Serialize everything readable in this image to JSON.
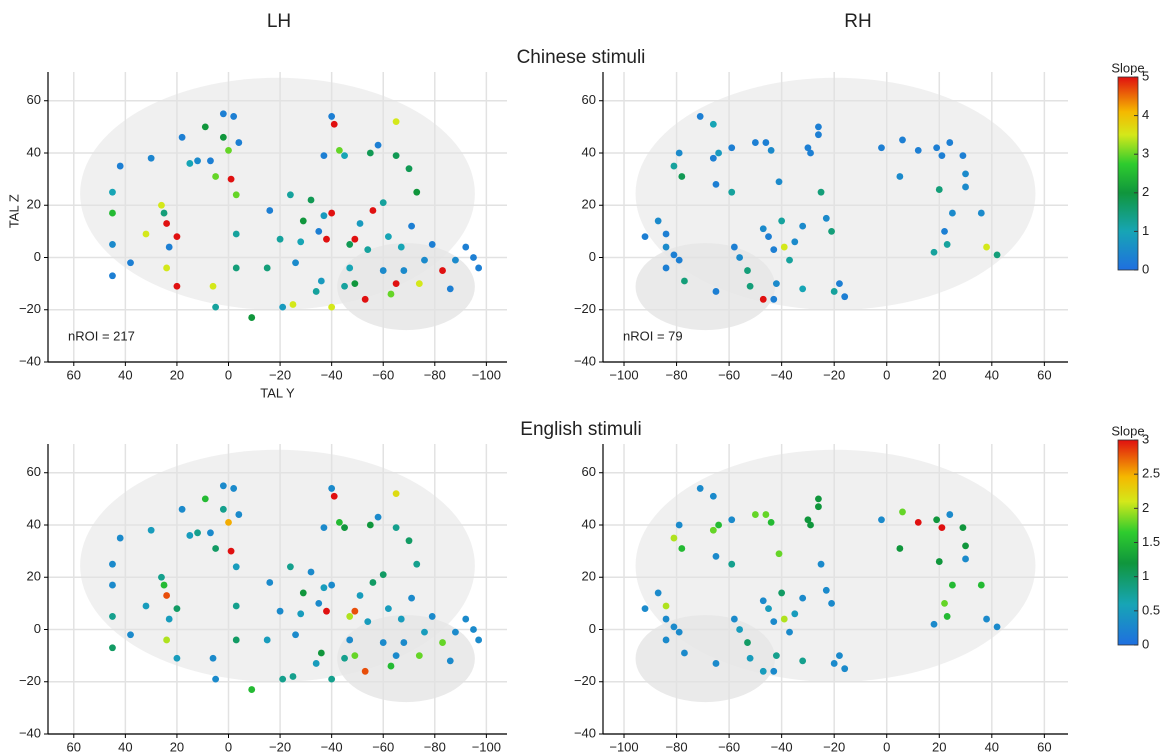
{
  "columns": [
    "LH",
    "RH"
  ],
  "chart_data": [
    {
      "type": "scatter",
      "title": "Chinese stimuli",
      "xlabel": "TAL Y",
      "ylabel": "TAL Z",
      "annotation": "nROI = 217",
      "xlim": [
        70,
        -108
      ],
      "ylim": [
        -40,
        71
      ],
      "grid": true,
      "colormap": "jet",
      "clim": [
        0,
        5
      ],
      "xticks": [
        60,
        40,
        20,
        0,
        {
          "value": -20,
          "label": "−20"
        },
        {
          "value": -40,
          "label": "−40"
        },
        {
          "value": -60,
          "label": "−60"
        },
        {
          "value": -80,
          "label": "−80"
        },
        {
          "value": -100,
          "label": "−100"
        }
      ],
      "yticks": [
        {
          "value": -40,
          "label": "−40"
        },
        {
          "value": -20,
          "label": "−20"
        },
        0,
        20,
        40,
        60
      ],
      "x": [
        45,
        45,
        45,
        45,
        42,
        38,
        30,
        32,
        25,
        26,
        24,
        20,
        20,
        23,
        24,
        18,
        15,
        12,
        9,
        7,
        5,
        2,
        -2,
        2,
        0,
        -1,
        -3,
        -3,
        -3,
        6,
        5,
        -4,
        -9,
        -16,
        -15,
        -20,
        -24,
        -26,
        -28,
        -29,
        -21,
        -25,
        -32,
        -35,
        -37,
        -38,
        -40,
        -36,
        -40,
        -37,
        -40,
        -41,
        -43,
        -45,
        -47,
        -47,
        -49,
        -49,
        -51,
        -53,
        -54,
        -56,
        -55,
        -58,
        -60,
        -62,
        -63,
        -65,
        -67,
        -65,
        -70,
        -65,
        -68,
        -73,
        -76,
        -79,
        -83,
        -88,
        -92,
        -95,
        -97,
        -86,
        -74,
        -71,
        -60,
        -45,
        -34
      ],
      "y": [
        25,
        17,
        5,
        -7,
        35,
        -2,
        38,
        9,
        17,
        20,
        13,
        8,
        -11,
        4,
        -4,
        46,
        36,
        37,
        50,
        37,
        31,
        55,
        54,
        46,
        41,
        30,
        24,
        9,
        -4,
        -11,
        -19,
        44,
        -23,
        18,
        -4,
        7,
        24,
        -2,
        6,
        14,
        -19,
        -18,
        22,
        10,
        16,
        7,
        17,
        -9,
        -19,
        39,
        54,
        51,
        41,
        39,
        5,
        -4,
        7,
        -10,
        13,
        -16,
        3,
        18,
        40,
        43,
        -5,
        8,
        -14,
        -10,
        4,
        39,
        34,
        52,
        -5,
        25,
        -1,
        5,
        -5,
        -1,
        4,
        0,
        -4,
        -12,
        -10,
        12,
        21,
        -11,
        -13
      ],
      "slope": [
        1,
        2.5,
        0.5,
        0.3,
        0.3,
        0.3,
        0.4,
        3.5,
        1.5,
        3.5,
        5,
        5,
        5,
        0.3,
        3.5,
        0.3,
        1,
        0.5,
        2,
        0.3,
        3,
        0.3,
        0.3,
        2,
        3,
        5,
        3,
        1.2,
        1.5,
        3.5,
        1.2,
        0.3,
        2,
        0.3,
        1.5,
        1.2,
        1.2,
        0.5,
        1,
        2,
        0.8,
        3.5,
        1.8,
        0.3,
        0.8,
        5,
        5,
        0.8,
        3.5,
        0.3,
        0.3,
        5,
        3,
        1,
        1.8,
        1,
        5,
        2,
        0.8,
        5,
        1.2,
        5,
        1.8,
        0.3,
        0.5,
        1,
        3,
        5,
        1,
        1.8,
        1.8,
        3.5,
        0.5,
        2,
        0.5,
        0.3,
        5,
        0.5,
        0.3,
        0.3,
        0.3,
        0.3,
        3.5,
        0.3,
        1.2,
        1.2,
        1.2
      ]
    },
    {
      "type": "scatter",
      "annotation": "nROI = 79",
      "xlim": [
        -108,
        69
      ],
      "ylim": [
        -40,
        71
      ],
      "grid": true,
      "colormap": "jet",
      "clim": [
        0,
        5
      ],
      "colorbar": {
        "title": "Slope",
        "ticks": [
          0,
          1,
          2,
          3,
          4,
          5
        ]
      },
      "xticks": [
        {
          "value": -100,
          "label": "−100"
        },
        {
          "value": -80,
          "label": "−80"
        },
        {
          "value": -60,
          "label": "−60"
        },
        {
          "value": -40,
          "label": "−40"
        },
        {
          "value": -20,
          "label": "−20"
        },
        0,
        20,
        40,
        60
      ],
      "yticks": [
        {
          "value": -40,
          "label": "−40"
        },
        {
          "value": -20,
          "label": "−20"
        },
        0,
        20,
        40,
        60
      ],
      "x": [
        -92,
        -87,
        -84,
        -84,
        -84,
        -81,
        -79,
        -77,
        -81,
        -79,
        -78,
        -71,
        -66,
        -66,
        -65,
        -64,
        -59,
        -59,
        -58,
        -56,
        -65,
        -52,
        -53,
        -50,
        -46,
        -44,
        -41,
        -47,
        -45,
        -43,
        -40,
        -39,
        -42,
        -43,
        -47,
        -37,
        -35,
        -32,
        -30,
        -29,
        -26,
        -26,
        -25,
        -23,
        -21,
        -18,
        -20,
        -2,
        6,
        5,
        12,
        19,
        21,
        24,
        29,
        30,
        30,
        20,
        25,
        22,
        23,
        18,
        36,
        38,
        42,
        -16,
        -32
      ],
      "y": [
        8,
        14,
        9,
        4,
        -4,
        1,
        -1,
        -9,
        35,
        40,
        31,
        54,
        51,
        38,
        28,
        40,
        42,
        25,
        4,
        0,
        -13,
        -11,
        -5,
        44,
        44,
        41,
        29,
        11,
        8,
        3,
        14,
        4,
        -10,
        -16,
        -16,
        -1,
        6,
        12,
        42,
        40,
        50,
        47,
        25,
        15,
        10,
        -10,
        -13,
        42,
        45,
        31,
        41,
        42,
        39,
        44,
        39,
        32,
        27,
        26,
        17,
        10,
        5,
        2,
        17,
        4,
        1,
        -15,
        -12
      ],
      "slope": [
        0.3,
        0.5,
        0.3,
        0.5,
        0.3,
        0.3,
        0.3,
        1.5,
        1.2,
        0.5,
        1.8,
        0.3,
        1,
        0.3,
        0.3,
        0.8,
        0.3,
        1.2,
        0.3,
        0.5,
        0.3,
        1.5,
        1.5,
        0.3,
        0.3,
        0.5,
        0.5,
        0.5,
        0.3,
        0.3,
        1.2,
        3.5,
        0.5,
        0.3,
        5,
        1.2,
        0.5,
        0.5,
        0.3,
        0.3,
        0.3,
        0.3,
        1.5,
        0.5,
        1.5,
        0.3,
        1.2,
        0.3,
        0.3,
        0.5,
        0.3,
        0.3,
        0.3,
        0.3,
        0.3,
        0.5,
        0.5,
        1.5,
        0.5,
        0.3,
        1.2,
        1.2,
        0.5,
        3.5,
        1.5,
        0.3,
        1
      ]
    },
    {
      "type": "scatter",
      "title": "English stimuli",
      "xlim": [
        70,
        -108
      ],
      "ylim": [
        -40,
        71
      ],
      "grid": true,
      "colormap": "jet",
      "clim": [
        0,
        3
      ],
      "xticks": [
        60,
        40,
        20,
        0,
        {
          "value": -20,
          "label": "−20"
        },
        {
          "value": -40,
          "label": "−40"
        },
        {
          "value": -60,
          "label": "−60"
        },
        {
          "value": -80,
          "label": "−80"
        },
        {
          "value": -100,
          "label": "−100"
        }
      ],
      "yticks": [
        {
          "value": -40,
          "label": "−40"
        },
        {
          "value": -20,
          "label": "−20"
        },
        0,
        20,
        40,
        60
      ],
      "x": [
        45,
        45,
        45,
        45,
        42,
        38,
        30,
        32,
        25,
        26,
        24,
        20,
        20,
        23,
        24,
        18,
        15,
        12,
        9,
        7,
        5,
        2,
        -2,
        2,
        0,
        -1,
        -3,
        -3,
        -3,
        6,
        5,
        -4,
        -9,
        -16,
        -15,
        -20,
        -24,
        -26,
        -28,
        -29,
        -21,
        -25,
        -32,
        -35,
        -37,
        -38,
        -40,
        -36,
        -40,
        -37,
        -40,
        -41,
        -43,
        -45,
        -47,
        -47,
        -49,
        -49,
        -51,
        -53,
        -54,
        -56,
        -55,
        -58,
        -60,
        -62,
        -63,
        -65,
        -67,
        -65,
        -70,
        -65,
        -68,
        -73,
        -76,
        -79,
        -83,
        -88,
        -92,
        -95,
        -97,
        -86,
        -74,
        -71,
        -60,
        -45,
        -34
      ],
      "y": [
        25,
        17,
        5,
        -7,
        35,
        -2,
        38,
        9,
        17,
        20,
        13,
        8,
        -11,
        4,
        -4,
        46,
        36,
        37,
        50,
        37,
        31,
        55,
        54,
        46,
        41,
        30,
        24,
        9,
        -4,
        -11,
        -19,
        44,
        -23,
        18,
        -4,
        7,
        24,
        -2,
        6,
        14,
        -19,
        -18,
        22,
        10,
        16,
        7,
        17,
        -9,
        -19,
        39,
        54,
        51,
        41,
        39,
        5,
        -4,
        7,
        -10,
        13,
        -16,
        3,
        18,
        40,
        43,
        -5,
        8,
        -14,
        -10,
        4,
        39,
        34,
        52,
        -5,
        25,
        -1,
        5,
        -5,
        -1,
        4,
        0,
        -4,
        -12,
        -10,
        12,
        21,
        -11,
        -13
      ],
      "slope": [
        0.3,
        0.3,
        0.8,
        1,
        0.3,
        0.3,
        0.5,
        0.5,
        1.5,
        0.8,
        2.8,
        1,
        0.5,
        0.5,
        2,
        0.3,
        0.5,
        0.8,
        1.5,
        0.3,
        1,
        0.3,
        0.3,
        0.8,
        2.5,
        3,
        0.5,
        0.8,
        1,
        0.3,
        0.3,
        0.3,
        1.5,
        0.3,
        0.5,
        0.3,
        0.8,
        0.3,
        0.5,
        1.2,
        0.8,
        0.8,
        0.3,
        0.3,
        0.5,
        3,
        0.3,
        1.2,
        0.8,
        0.3,
        0.3,
        3,
        1.5,
        1.2,
        2,
        0.3,
        2.8,
        1.8,
        0.5,
        2.8,
        0.5,
        1,
        1.2,
        0.3,
        0.3,
        0.5,
        1.5,
        0.3,
        0.5,
        0.8,
        1,
        2.2,
        0.3,
        0.8,
        0.5,
        0.3,
        1.8,
        0.3,
        0.3,
        0.3,
        0.3,
        0.3,
        1.8,
        0.3,
        1,
        0.8,
        0.5
      ]
    },
    {
      "type": "scatter",
      "xlim": [
        -108,
        69
      ],
      "ylim": [
        -40,
        71
      ],
      "grid": true,
      "colormap": "jet",
      "clim": [
        0,
        3
      ],
      "colorbar": {
        "title": "Slope",
        "ticks": [
          0,
          0.5,
          1,
          1.5,
          2,
          2.5,
          3
        ]
      },
      "xticks": [
        {
          "value": -100,
          "label": "−100"
        },
        {
          "value": -80,
          "label": "−80"
        },
        {
          "value": -60,
          "label": "−60"
        },
        {
          "value": -40,
          "label": "−40"
        },
        {
          "value": -20,
          "label": "−20"
        },
        0,
        20,
        40,
        60
      ],
      "yticks": [
        {
          "value": -40,
          "label": "−40"
        },
        {
          "value": -20,
          "label": "−20"
        },
        0,
        20,
        40,
        60
      ],
      "x": [
        -92,
        -87,
        -84,
        -84,
        -84,
        -81,
        -79,
        -77,
        -81,
        -79,
        -78,
        -71,
        -66,
        -66,
        -65,
        -64,
        -59,
        -59,
        -58,
        -56,
        -65,
        -52,
        -53,
        -50,
        -46,
        -44,
        -41,
        -47,
        -45,
        -43,
        -40,
        -39,
        -42,
        -43,
        -47,
        -37,
        -35,
        -32,
        -30,
        -29,
        -26,
        -26,
        -25,
        -23,
        -21,
        -18,
        -20,
        -2,
        6,
        5,
        12,
        19,
        21,
        24,
        29,
        30,
        30,
        20,
        25,
        22,
        23,
        18,
        36,
        38,
        42,
        -16,
        -32
      ],
      "y": [
        8,
        14,
        9,
        4,
        -4,
        1,
        -1,
        -9,
        35,
        40,
        31,
        54,
        51,
        38,
        28,
        40,
        42,
        25,
        4,
        0,
        -13,
        -11,
        -5,
        44,
        44,
        41,
        29,
        11,
        8,
        3,
        14,
        4,
        -10,
        -16,
        -16,
        -1,
        6,
        12,
        42,
        40,
        50,
        47,
        25,
        15,
        10,
        -10,
        -13,
        42,
        45,
        31,
        41,
        42,
        39,
        44,
        39,
        32,
        27,
        26,
        17,
        10,
        5,
        2,
        17,
        4,
        1,
        -15,
        -12
      ],
      "slope": [
        0.3,
        0.3,
        2,
        0.3,
        0.3,
        0.3,
        0.3,
        0.3,
        2,
        0.3,
        1.5,
        0.3,
        0.3,
        1.8,
        0.3,
        1.5,
        0.3,
        0.8,
        0.3,
        0.5,
        0.3,
        0.5,
        1,
        1.8,
        1.8,
        1.5,
        1.8,
        0.3,
        0.5,
        0.3,
        1,
        2,
        0.8,
        0.3,
        0.5,
        0.3,
        0.5,
        0.3,
        1.2,
        1.2,
        1.2,
        1.2,
        0.3,
        0.3,
        0.3,
        0.3,
        0.3,
        0.3,
        1.8,
        1.2,
        3,
        1.2,
        3,
        0.3,
        1.2,
        1.2,
        0.3,
        1.2,
        1.5,
        1.8,
        1.5,
        0.3,
        1.5,
        0.3,
        0.3,
        0.3,
        0.8
      ]
    }
  ]
}
